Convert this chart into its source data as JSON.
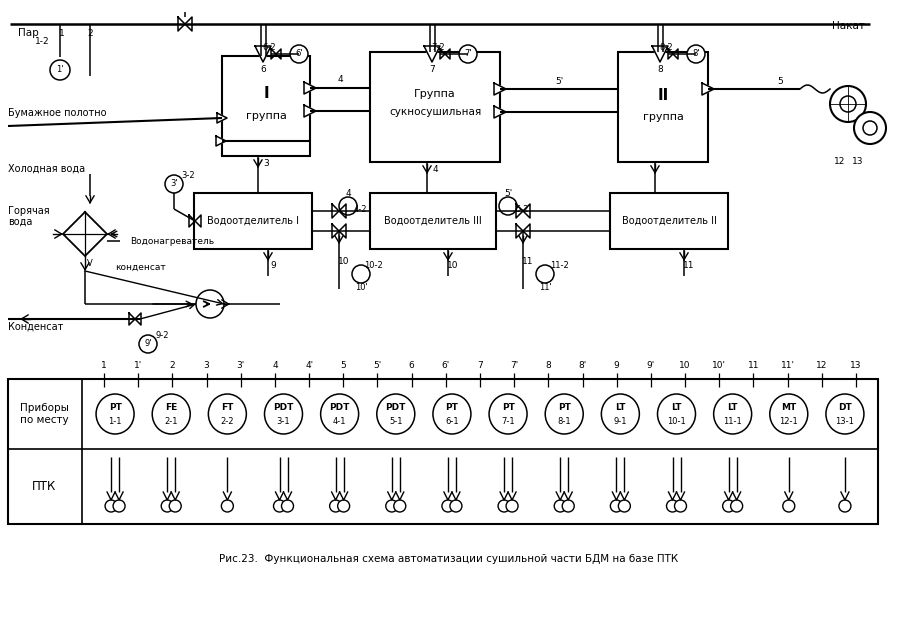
{
  "title": "Рис.23.  Функциональная схема автоматизации сушильной части БДМ на базе ПТК",
  "instruments": [
    "PT\n1-1",
    "FE\n2-1",
    "FT\n2-2",
    "PDT\n3-1",
    "PDT\n4-1",
    "PDT\n5-1",
    "PT\n6-1",
    "PT\n7-1",
    "PT\n8-1",
    "LT\n9-1",
    "LT\n10-1",
    "LT\n11-1",
    "MT\n12-1",
    "DT\n13-1"
  ],
  "col_labels": [
    "1",
    "1'",
    "2",
    "3",
    "3'",
    "4",
    "4'",
    "5",
    "5'",
    "6",
    "6'",
    "7",
    "7'",
    "8",
    "8'",
    "9",
    "9'",
    "10",
    "10'",
    "11",
    "11'",
    "12",
    "13"
  ],
  "row1_label": "Приборы\nпо месту",
  "row2_label": "ПТК",
  "caption": "Рис.23.  Функциональная схема автоматизации сушильной части БДМ на базе ПТК"
}
